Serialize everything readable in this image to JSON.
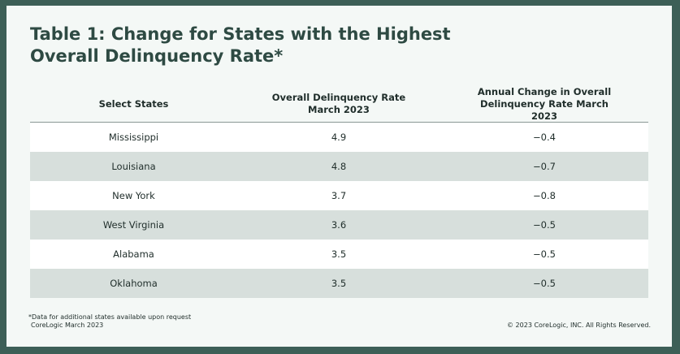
{
  "title": "Table 1: Change for States with the Highest Overall Delinquency Rate*",
  "columns": [
    "Select States",
    "Overall Delinquency Rate March 2023",
    "Annual Change in Overall Delinquency Rate March 2023"
  ],
  "rows": [
    {
      "state": "Mississippi",
      "rate": "4.9",
      "change": "−0.4"
    },
    {
      "state": "Louisiana",
      "rate": "4.8",
      "change": "−0.7"
    },
    {
      "state": "New York",
      "rate": "3.7",
      "change": "−0.8"
    },
    {
      "state": "West Virginia",
      "rate": "3.6",
      "change": "−0.5"
    },
    {
      "state": "Alabama",
      "rate": "3.5",
      "change": "−0.5"
    },
    {
      "state": "Oklahoma",
      "rate": "3.5",
      "change": "−0.5"
    }
  ],
  "footnote": {
    "note": "*Data for additional states available upon request",
    "source": "CoreLogic March 2023"
  },
  "copyright": "© 2023 CoreLogic, INC. All Rights Reserved."
}
